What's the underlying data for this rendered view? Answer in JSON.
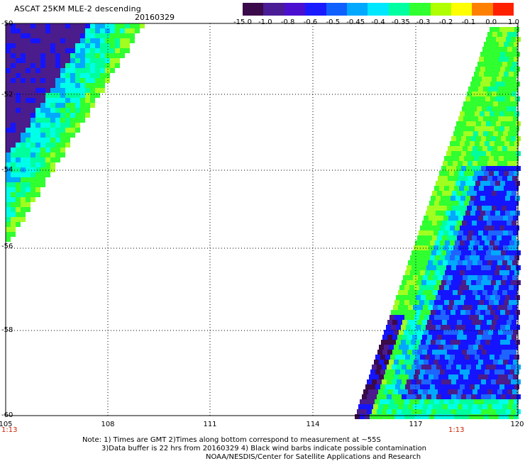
{
  "header": {
    "title": "ASCAT 25KM MLE-2 descending",
    "date": "20160329"
  },
  "colorbar": {
    "labels": [
      "-15.0",
      "-1.0",
      "-0.8",
      "-0.6",
      "-0.5",
      "-0.45",
      "-0.4",
      "-0.35",
      "-0.3",
      "-0.2",
      "-0.1",
      "0.0",
      "1.0"
    ],
    "colors": [
      "#3a0a4a",
      "#4a1d96",
      "#4b0fd0",
      "#1a1aff",
      "#1060ff",
      "#00a8ff",
      "#00e8ff",
      "#00ffa0",
      "#30ff30",
      "#b0ff00",
      "#ffff00",
      "#ff8000",
      "#ff2000"
    ]
  },
  "map": {
    "lat_labels": [
      "-50",
      "-52",
      "-54",
      "-56",
      "-58",
      "-60"
    ],
    "lon_labels": [
      "105",
      "108",
      "111",
      "114",
      "117",
      "120"
    ],
    "time_left": "1:13",
    "time_right": "1:13",
    "swath_colors": {
      "purple": "#4b1c8c",
      "darkpurple": "#3a0a4a",
      "blue": "#1414ff",
      "midblue": "#1e64ff",
      "lightblue": "#00a8ff",
      "cyan": "#00ffe8",
      "aqua": "#00ff9c",
      "green": "#30ff30",
      "lime": "#a0ff20"
    }
  },
  "notes": {
    "line1": "Note: 1) Times are GMT 2)Times along bottom correspond to measurement at ~55S",
    "line2": "3)Data buffer is 22 hrs from 20160329 4) Black wind barbs indicate possible contamination",
    "line3": "NOAA/NESDIS/Center for Satellite Applications and Research"
  }
}
